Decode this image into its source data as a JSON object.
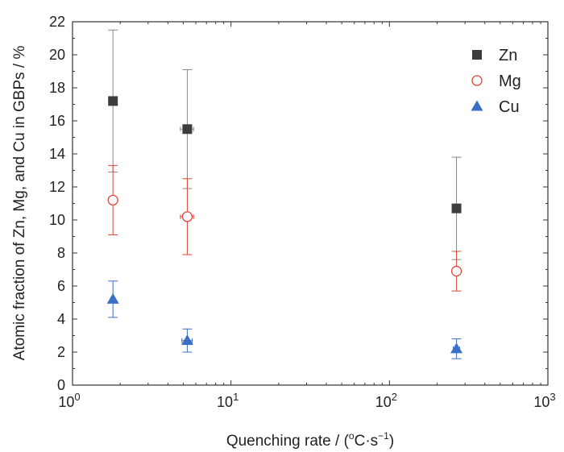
{
  "chart_data": {
    "type": "scatter",
    "title": "",
    "xlabel_main": "Quenching rate / (",
    "xlabel_deg": "o",
    "xlabel_unit": "C·s",
    "xlabel_exp": "−1",
    "xlabel_close": ")",
    "ylabel": "Atomic fraction of Zn, Mg, and Cu in GBPs / %",
    "xscale": "log",
    "xlim": [
      1,
      1000
    ],
    "ylim": [
      0,
      22
    ],
    "xticks": [
      {
        "base": "10",
        "exp": "0",
        "value": 1
      },
      {
        "base": "10",
        "exp": "1",
        "value": 10
      },
      {
        "base": "10",
        "exp": "2",
        "value": 100
      },
      {
        "base": "10",
        "exp": "3",
        "value": 1000
      }
    ],
    "yticks": [
      "0",
      "2",
      "4",
      "6",
      "8",
      "10",
      "12",
      "14",
      "16",
      "18",
      "20",
      "22"
    ],
    "legend_position": "top-right",
    "series": [
      {
        "name": "Zn",
        "marker": "square",
        "color": "#3d3d3d",
        "errorColor": "#888888",
        "points": [
          {
            "x": 1.8,
            "y": 17.2,
            "yerr_low": 4.3,
            "yerr_high": 4.3,
            "xerr_low": 0.05,
            "xerr_high": 0.05
          },
          {
            "x": 5.3,
            "y": 15.5,
            "yerr_low": 3.6,
            "yerr_high": 3.6,
            "xerr_low": 0.5,
            "xerr_high": 0.5
          },
          {
            "x": 265,
            "y": 10.7,
            "yerr_low": 3.1,
            "yerr_high": 3.1,
            "xerr_low": 15,
            "xerr_high": 15
          }
        ]
      },
      {
        "name": "Mg",
        "marker": "circle-open",
        "color": "#e0463a",
        "errorColor": "#e0463a",
        "points": [
          {
            "x": 1.8,
            "y": 11.2,
            "yerr_low": 2.1,
            "yerr_high": 2.1,
            "xerr_low": 0.05,
            "xerr_high": 0.05
          },
          {
            "x": 5.3,
            "y": 10.2,
            "yerr_low": 2.3,
            "yerr_high": 2.3,
            "xerr_low": 0.5,
            "xerr_high": 0.5
          },
          {
            "x": 265,
            "y": 6.9,
            "yerr_low": 1.2,
            "yerr_high": 1.2,
            "xerr_low": 15,
            "xerr_high": 15
          }
        ]
      },
      {
        "name": "Cu",
        "marker": "triangle",
        "color": "#3a6fc4",
        "errorColor": "#3a6fc4",
        "points": [
          {
            "x": 1.8,
            "y": 5.2,
            "yerr_low": 1.1,
            "yerr_high": 1.1,
            "xerr_low": 0.05,
            "xerr_high": 0.05
          },
          {
            "x": 5.3,
            "y": 2.7,
            "yerr_low": 0.7,
            "yerr_high": 0.7,
            "xerr_low": 0.4,
            "xerr_high": 0.4
          },
          {
            "x": 265,
            "y": 2.2,
            "yerr_low": 0.6,
            "yerr_high": 0.6,
            "xerr_low": 12,
            "xerr_high": 12
          }
        ]
      }
    ]
  }
}
